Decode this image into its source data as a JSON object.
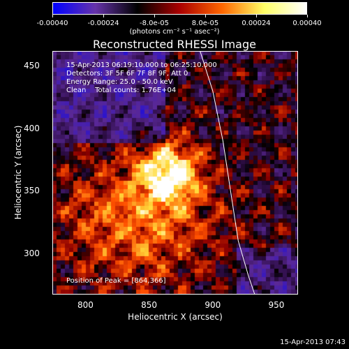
{
  "colorbar": {
    "ticks": [
      "-0.00040",
      "-0.00024",
      "-8.0e-05",
      "8.0e-05",
      "0.00024",
      "0.00040"
    ],
    "units": "(photons cm⁻² s⁻¹ asec⁻²)",
    "colors": [
      "#0000ff",
      "#6633aa",
      "#000000",
      "#aa0000",
      "#ff6600",
      "#ffff66",
      "#ffffff"
    ]
  },
  "info": {
    "time_range": "15-Apr-2013 06:19:10.000 to 06:25:10.000",
    "detectors": "Detectors: 3F 5F 6F 7F 8F 9F, Att 0",
    "energy": "Energy Range: 25.0 - 50.0 keV",
    "clean": "Clean    Total counts: 1.76E+04",
    "peak": "Position of Peak = [864,366]"
  },
  "timestamp": "15-Apr-2013 07:43",
  "chart_data": {
    "type": "heatmap",
    "title": "Reconstructed RHESSI Image",
    "xlabel": "Heliocentric X (arcsec)",
    "ylabel": "Heliocentric Y (arcsec)",
    "xlim": [
      774,
      967
    ],
    "ylim": [
      267,
      462
    ],
    "xticks": [
      "800",
      "850",
      "900",
      "950"
    ],
    "yticks": [
      "300",
      "350",
      "400",
      "450"
    ],
    "peak": {
      "x": 864,
      "y": 366
    },
    "limb_curve": [
      [
        890,
        462
      ],
      [
        900,
        430
      ],
      [
        908,
        390
      ],
      [
        914,
        350
      ],
      [
        920,
        310
      ],
      [
        928,
        282
      ],
      [
        933,
        267
      ]
    ]
  }
}
